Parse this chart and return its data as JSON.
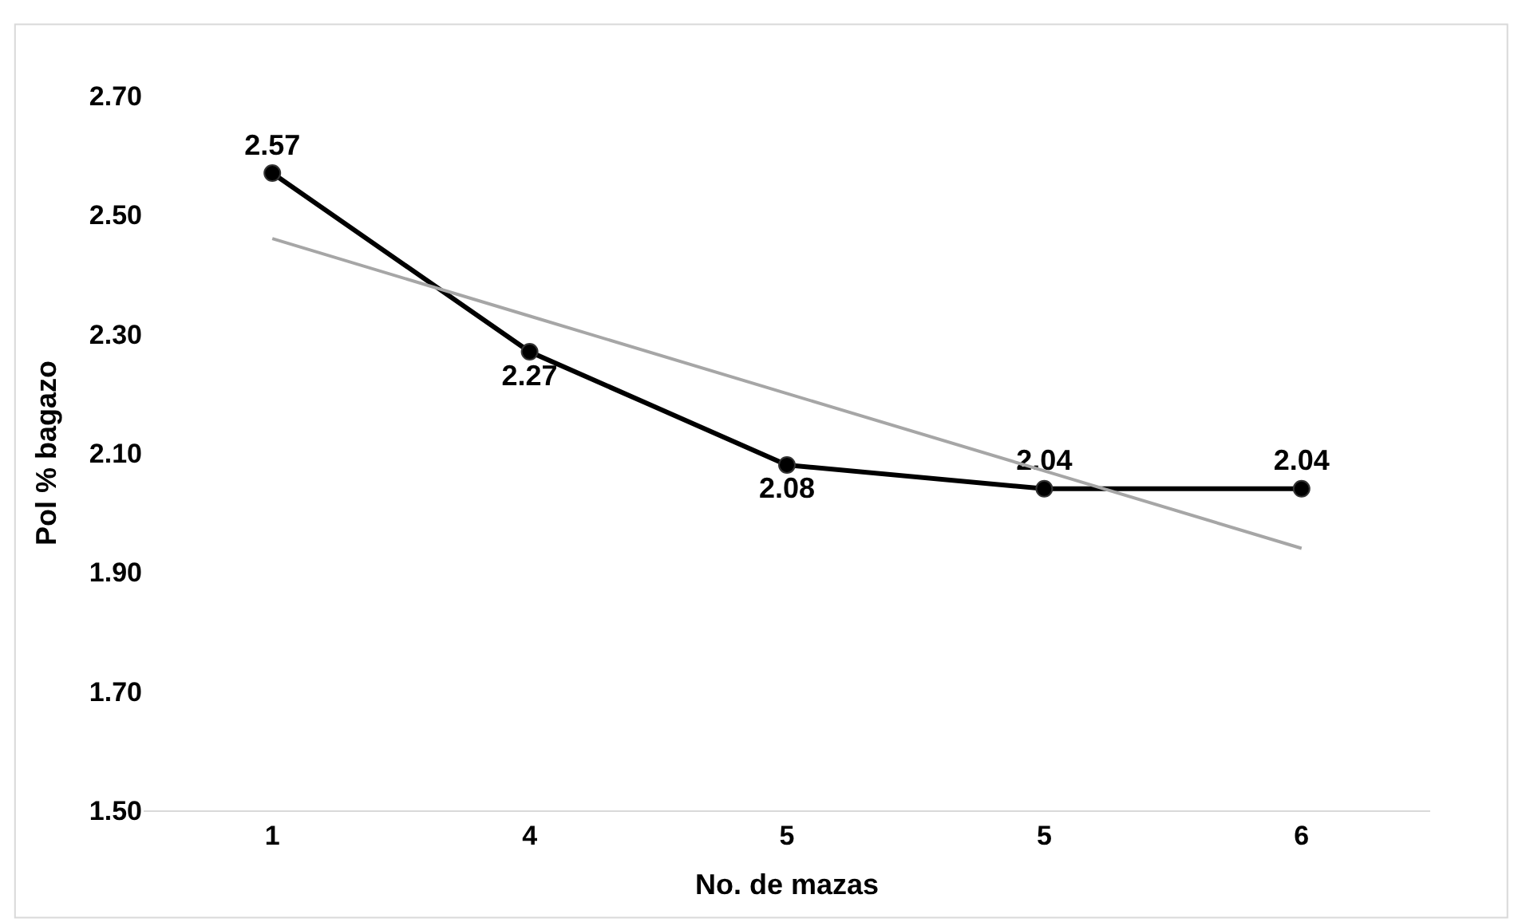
{
  "chart_data": {
    "type": "line",
    "xlabel": "No. de mazas",
    "ylabel": "Pol % bagazo",
    "categories": [
      "1",
      "4",
      "5",
      "5",
      "6"
    ],
    "series": [
      {
        "color": "#000000",
        "values": [
          2.57,
          2.27,
          2.08,
          2.04,
          2.04
        ],
        "marker": "circle",
        "data_labels": true
      },
      {
        "color": "#a6a6a6",
        "values": [
          2.46,
          2.33,
          2.2,
          2.07,
          1.94
        ],
        "marker": "none"
      }
    ],
    "ylim": [
      1.5,
      2.7
    ],
    "yticks": [
      {
        "value": 1.5,
        "label": "1.50"
      },
      {
        "value": 1.7,
        "label": "1.70"
      },
      {
        "value": 1.9,
        "label": "1.90"
      },
      {
        "value": 2.1,
        "label": "2.10"
      },
      {
        "value": 2.3,
        "label": "2.30"
      },
      {
        "value": 2.5,
        "label": "2.50"
      },
      {
        "value": 2.7,
        "label": "2.70"
      }
    ]
  }
}
